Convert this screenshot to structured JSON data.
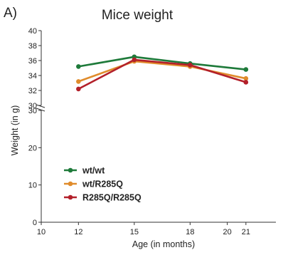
{
  "panel_label": "A)",
  "chart_data": {
    "type": "line",
    "title": "Mice weight",
    "xlabel": "Age (in months)",
    "ylabel": "Weight (in g)",
    "x_ticks": [
      10,
      12,
      15,
      18,
      20,
      21
    ],
    "xlim": [
      10,
      22
    ],
    "y_axis_broken": true,
    "y_lower": {
      "range": [
        0,
        30
      ],
      "ticks": [
        0,
        10,
        20,
        30
      ]
    },
    "y_upper": {
      "range": [
        30,
        40
      ],
      "ticks": [
        30,
        32,
        34,
        36,
        38,
        40
      ]
    },
    "grid": false,
    "legend_position": "lower-left",
    "x": [
      12,
      15,
      18,
      21
    ],
    "series": [
      {
        "name": "wt/wt",
        "color": "#1e7a3a",
        "values": [
          35.2,
          36.5,
          35.6,
          34.8
        ]
      },
      {
        "name": "wt/R285Q",
        "color": "#e08c2c",
        "values": [
          33.2,
          35.9,
          35.2,
          33.6
        ]
      },
      {
        "name": "R285Q/R285Q",
        "color": "#b3202a",
        "values": [
          32.2,
          36.1,
          35.4,
          33.1
        ]
      }
    ]
  }
}
